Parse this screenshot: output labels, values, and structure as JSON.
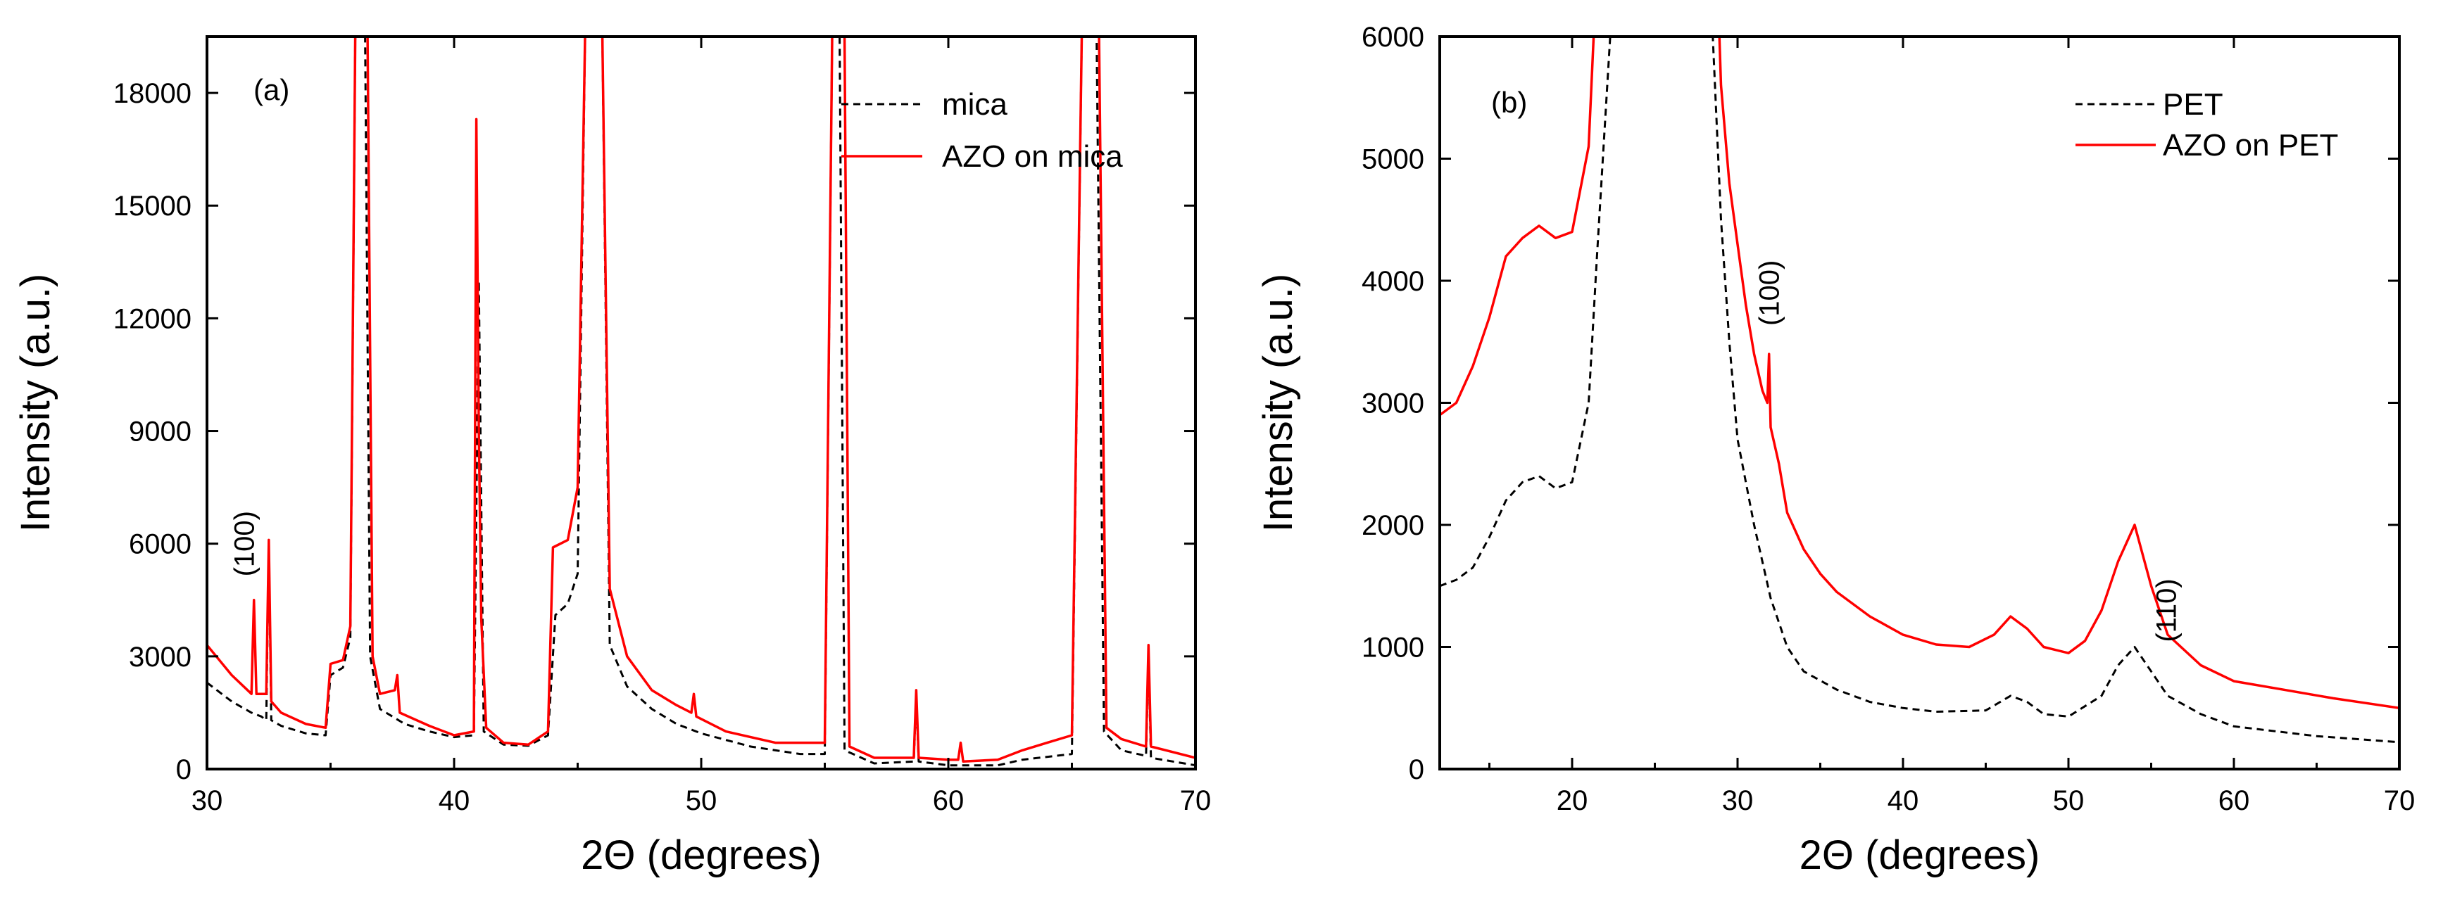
{
  "chart_data": [
    {
      "type": "line",
      "panel_label": "(a)",
      "xlabel": "2Θ (degrees)",
      "ylabel": "Intensity (a.u.)",
      "xlim": [
        30,
        70
      ],
      "ylim": [
        0,
        19500
      ],
      "xticks": [
        30,
        40,
        50,
        60,
        70
      ],
      "yticks": [
        0,
        3000,
        6000,
        9000,
        12000,
        15000,
        18000
      ],
      "legend_position": "top-right",
      "annotations": [
        {
          "text": "(100)",
          "x": 31.9,
          "y": 6000,
          "rotation": -90
        }
      ],
      "series": [
        {
          "name": "mica",
          "color": "#000000",
          "style": "dashed",
          "points": [
            [
              30,
              2300
            ],
            [
              31,
              1800
            ],
            [
              31.8,
              1500
            ],
            [
              32.2,
              1400
            ],
            [
              32.4,
              1300
            ],
            [
              32.5,
              6000
            ],
            [
              32.6,
              1300
            ],
            [
              33,
              1150
            ],
            [
              34,
              950
            ],
            [
              34.8,
              900
            ],
            [
              35,
              2500
            ],
            [
              35.5,
              2700
            ],
            [
              35.8,
              3500
            ],
            [
              36,
              19500
            ],
            [
              36.4,
              19500
            ],
            [
              36.6,
              3000
            ],
            [
              37,
              1600
            ],
            [
              38,
              1200
            ],
            [
              39,
              1000
            ],
            [
              40,
              850
            ],
            [
              40.8,
              900
            ],
            [
              41,
              13000
            ],
            [
              41.2,
              1000
            ],
            [
              42,
              650
            ],
            [
              43,
              620
            ],
            [
              43.8,
              900
            ],
            [
              44.1,
              4100
            ],
            [
              44.6,
              4400
            ],
            [
              45,
              5200
            ],
            [
              45.3,
              19500
            ],
            [
              46,
              19500
            ],
            [
              46.3,
              3300
            ],
            [
              47,
              2200
            ],
            [
              48,
              1600
            ],
            [
              49,
              1200
            ],
            [
              50,
              950
            ],
            [
              52,
              600
            ],
            [
              54,
              400
            ],
            [
              55,
              400
            ],
            [
              55.3,
              19500
            ],
            [
              55.6,
              19500
            ],
            [
              55.8,
              500
            ],
            [
              57,
              150
            ],
            [
              58.6,
              200
            ],
            [
              58.7,
              1900
            ],
            [
              58.8,
              200
            ],
            [
              60,
              100
            ],
            [
              62,
              100
            ],
            [
              63,
              250
            ],
            [
              65,
              400
            ],
            [
              65.4,
              19500
            ],
            [
              66,
              19500
            ],
            [
              66.3,
              1000
            ],
            [
              67,
              500
            ],
            [
              68,
              350
            ],
            [
              68.1,
              3000
            ],
            [
              68.2,
              300
            ],
            [
              70,
              100
            ]
          ]
        },
        {
          "name": "AZO on mica",
          "color": "#ff0000",
          "style": "solid",
          "points": [
            [
              30,
              3300
            ],
            [
              31,
              2500
            ],
            [
              31.8,
              2000
            ],
            [
              31.9,
              4500
            ],
            [
              32,
              2000
            ],
            [
              32.4,
              2000
            ],
            [
              32.5,
              6100
            ],
            [
              32.6,
              1800
            ],
            [
              33,
              1500
            ],
            [
              34,
              1200
            ],
            [
              34.8,
              1100
            ],
            [
              35,
              2800
            ],
            [
              35.5,
              2900
            ],
            [
              35.8,
              3800
            ],
            [
              36,
              19500
            ],
            [
              36.5,
              19500
            ],
            [
              36.7,
              3000
            ],
            [
              37,
              2000
            ],
            [
              37.6,
              2100
            ],
            [
              37.7,
              2500
            ],
            [
              37.8,
              1500
            ],
            [
              39,
              1150
            ],
            [
              40,
              900
            ],
            [
              40.8,
              1000
            ],
            [
              40.9,
              17300
            ],
            [
              41,
              9000
            ],
            [
              41.1,
              4000
            ],
            [
              41.3,
              1100
            ],
            [
              42,
              700
            ],
            [
              43,
              650
            ],
            [
              43.8,
              1000
            ],
            [
              44,
              5900
            ],
            [
              44.6,
              6100
            ],
            [
              45,
              7500
            ],
            [
              45.3,
              19500
            ],
            [
              46,
              19500
            ],
            [
              46.3,
              4800
            ],
            [
              47,
              3000
            ],
            [
              48,
              2100
            ],
            [
              49,
              1700
            ],
            [
              49.6,
              1500
            ],
            [
              49.7,
              2000
            ],
            [
              49.8,
              1400
            ],
            [
              51,
              1000
            ],
            [
              53,
              700
            ],
            [
              55,
              700
            ],
            [
              55.3,
              19500
            ],
            [
              55.8,
              19500
            ],
            [
              56,
              600
            ],
            [
              57,
              300
            ],
            [
              58.6,
              300
            ],
            [
              58.7,
              2100
            ],
            [
              58.8,
              300
            ],
            [
              60,
              250
            ],
            [
              60.4,
              250
            ],
            [
              60.5,
              700
            ],
            [
              60.6,
              200
            ],
            [
              62,
              250
            ],
            [
              63,
              500
            ],
            [
              64,
              700
            ],
            [
              65,
              900
            ],
            [
              65.4,
              19500
            ],
            [
              66.1,
              19500
            ],
            [
              66.4,
              1100
            ],
            [
              67,
              800
            ],
            [
              68,
              600
            ],
            [
              68.1,
              3300
            ],
            [
              68.2,
              600
            ],
            [
              70,
              300
            ]
          ]
        }
      ]
    },
    {
      "type": "line",
      "panel_label": "(b)",
      "xlabel": "2Θ (degrees)",
      "ylabel": "Intensity (a.u.)",
      "xlim": [
        12,
        70
      ],
      "ylim": [
        0,
        6000
      ],
      "xticks": [
        20,
        30,
        40,
        50,
        60,
        70
      ],
      "yticks": [
        0,
        1000,
        2000,
        3000,
        4000,
        5000,
        6000
      ],
      "legend_position": "top-right",
      "annotations": [
        {
          "text": "(100)",
          "x": 32.5,
          "y": 3900,
          "rotation": -90
        },
        {
          "text": "(110)",
          "x": 56.5,
          "y": 1300,
          "rotation": -90
        }
      ],
      "series": [
        {
          "name": "PET",
          "color": "#000000",
          "style": "dashed",
          "points": [
            [
              12,
              1500
            ],
            [
              13,
              1550
            ],
            [
              14,
              1650
            ],
            [
              15,
              1900
            ],
            [
              16,
              2200
            ],
            [
              17,
              2350
            ],
            [
              18,
              2400
            ],
            [
              19,
              2300
            ],
            [
              20,
              2350
            ],
            [
              21,
              3000
            ],
            [
              21.5,
              4200
            ],
            [
              22.3,
              6000
            ],
            [
              28.5,
              6000
            ],
            [
              29,
              4500
            ],
            [
              29.5,
              3500
            ],
            [
              30,
              2700
            ],
            [
              31,
              2000
            ],
            [
              32,
              1400
            ],
            [
              33,
              1000
            ],
            [
              34,
              800
            ],
            [
              36,
              650
            ],
            [
              38,
              550
            ],
            [
              40,
              500
            ],
            [
              42,
              470
            ],
            [
              45,
              480
            ],
            [
              46.5,
              600
            ],
            [
              47.5,
              550
            ],
            [
              48.5,
              450
            ],
            [
              50,
              430
            ],
            [
              52,
              600
            ],
            [
              53,
              850
            ],
            [
              54,
              1000
            ],
            [
              55,
              800
            ],
            [
              56,
              600
            ],
            [
              58,
              450
            ],
            [
              60,
              350
            ],
            [
              65,
              270
            ],
            [
              70,
              220
            ]
          ]
        },
        {
          "name": "AZO on PET",
          "color": "#ff0000",
          "style": "solid",
          "points": [
            [
              12,
              2900
            ],
            [
              13,
              3000
            ],
            [
              14,
              3300
            ],
            [
              15,
              3700
            ],
            [
              16,
              4200
            ],
            [
              17,
              4350
            ],
            [
              18,
              4450
            ],
            [
              19,
              4350
            ],
            [
              20,
              4400
            ],
            [
              21,
              5100
            ],
            [
              21.3,
              6000
            ],
            [
              28.9,
              6000
            ],
            [
              29,
              5600
            ],
            [
              29.5,
              4800
            ],
            [
              30,
              4300
            ],
            [
              30.5,
              3800
            ],
            [
              31,
              3400
            ],
            [
              31.5,
              3100
            ],
            [
              31.8,
              3000
            ],
            [
              31.9,
              3400
            ],
            [
              32,
              2800
            ],
            [
              32.5,
              2500
            ],
            [
              33,
              2100
            ],
            [
              34,
              1800
            ],
            [
              35,
              1600
            ],
            [
              36,
              1450
            ],
            [
              38,
              1250
            ],
            [
              40,
              1100
            ],
            [
              42,
              1020
            ],
            [
              44,
              1000
            ],
            [
              45.5,
              1100
            ],
            [
              46.5,
              1250
            ],
            [
              47.5,
              1150
            ],
            [
              48.5,
              1000
            ],
            [
              50,
              950
            ],
            [
              51,
              1050
            ],
            [
              52,
              1300
            ],
            [
              53,
              1700
            ],
            [
              54,
              2000
            ],
            [
              55,
              1500
            ],
            [
              56,
              1100
            ],
            [
              58,
              850
            ],
            [
              60,
              720
            ],
            [
              63,
              650
            ],
            [
              66,
              580
            ],
            [
              68,
              540
            ],
            [
              70,
              500
            ]
          ]
        }
      ]
    }
  ]
}
